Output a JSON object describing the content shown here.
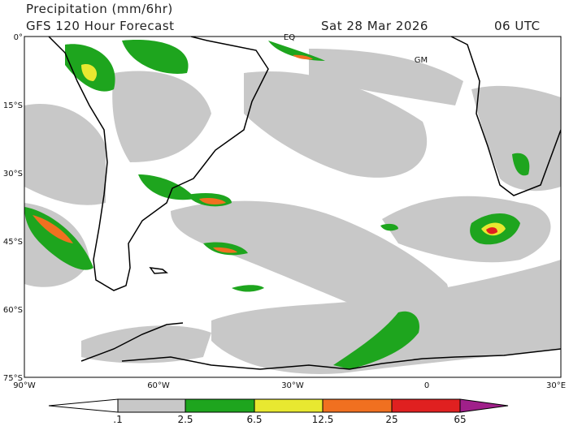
{
  "header": {
    "title": "Precipitation (mm/6hr)",
    "subtitle": "GFS 120 Hour Forecast",
    "date": "Sat 28 Mar 2026",
    "time": "06 UTC"
  },
  "map": {
    "lat_labels": [
      "0°",
      "15°S",
      "30°S",
      "45°S",
      "60°S",
      "75°S"
    ],
    "lon_labels": [
      "90°W",
      "60°W",
      "30°W",
      "0",
      "30°E"
    ],
    "place_labels": [
      "EQ",
      "GM"
    ]
  },
  "colorbar": {
    "labels": [
      ".1",
      "2.5",
      "6.5",
      "12.5",
      "25",
      "65"
    ]
  }
}
